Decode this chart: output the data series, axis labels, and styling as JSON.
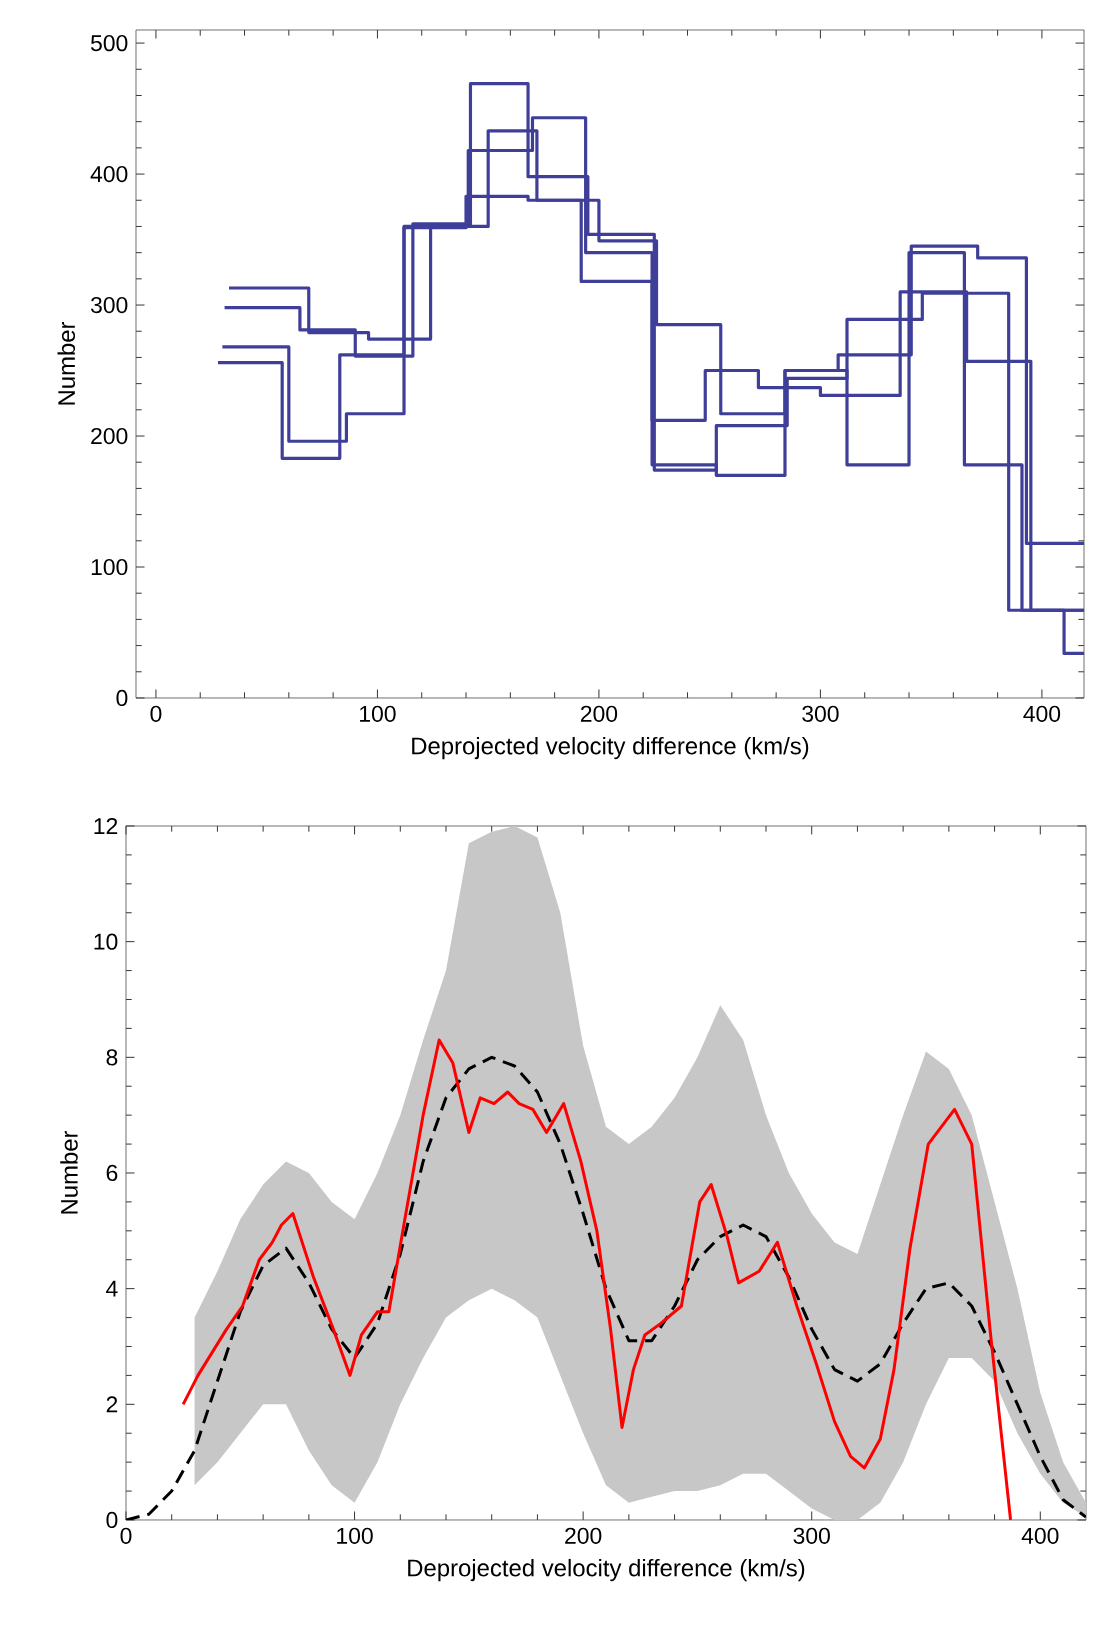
{
  "chart_data": [
    {
      "type": "step",
      "xlabel": "Deprojected velocity difference (km/s)",
      "ylabel": "Number",
      "xlim": [
        -9,
        419
      ],
      "ylim": [
        0,
        510
      ],
      "xticks": [
        0,
        100,
        200,
        300,
        400
      ],
      "yticks": [
        0,
        100,
        200,
        300,
        400,
        500
      ],
      "series": [
        {
          "color": "#3f3f9a",
          "x": [
            33,
            69,
            96,
            124,
            150,
            172,
            200,
            226,
            255,
            284,
            308,
            341,
            371,
            393,
            419
          ],
          "values": [
            313,
            279,
            274,
            360,
            433,
            380,
            349,
            285,
            217,
            250,
            262,
            345,
            336,
            118,
            118
          ]
        },
        {
          "color": "#3f3f9a",
          "x": [
            31,
            65,
            90,
            116,
            141,
            170,
            194,
            224,
            248,
            272,
            300,
            336,
            366,
            395,
            419
          ],
          "values": [
            298,
            281,
            261,
            362,
            418,
            443,
            340,
            212,
            250,
            237,
            231,
            310,
            257,
            67,
            67
          ]
        },
        {
          "color": "#3f3f9a",
          "x": [
            30,
            60,
            86,
            112,
            142,
            168,
            195,
            225,
            253,
            285,
            312,
            346,
            385,
            410,
            419
          ],
          "values": [
            268,
            196,
            217,
            360,
            469,
            398,
            354,
            174,
            208,
            244,
            289,
            309,
            67,
            34,
            34
          ]
        },
        {
          "color": "#3f3f9a",
          "x": [
            28,
            57,
            83,
            112,
            140,
            168,
            192,
            224,
            253,
            284,
            312,
            340,
            365,
            391,
            419
          ],
          "values": [
            256,
            183,
            262,
            359,
            383,
            380,
            318,
            178,
            170,
            250,
            178,
            340,
            178,
            67,
            67
          ]
        }
      ]
    },
    {
      "type": "line",
      "xlabel": "Deprojected velocity difference (km/s)",
      "ylabel": "Number",
      "xlim": [
        0,
        420
      ],
      "ylim": [
        0,
        12
      ],
      "xticks": [
        0,
        100,
        200,
        300,
        400
      ],
      "yticks": [
        0,
        2,
        4,
        6,
        8,
        10,
        12
      ],
      "series": [
        {
          "color": "#000000",
          "line_style": "dashed",
          "x": [
            0,
            10,
            20,
            30,
            40,
            50,
            60,
            70,
            80,
            90,
            100,
            110,
            120,
            130,
            140,
            150,
            160,
            170,
            180,
            190,
            200,
            210,
            220,
            230,
            240,
            250,
            260,
            270,
            280,
            290,
            300,
            310,
            320,
            330,
            340,
            350,
            360,
            370,
            380,
            390,
            400,
            410,
            420
          ],
          "values": [
            0,
            0.1,
            0.5,
            1.2,
            2.4,
            3.6,
            4.4,
            4.7,
            4.1,
            3.3,
            2.8,
            3.4,
            4.6,
            6.2,
            7.3,
            7.8,
            8.0,
            7.85,
            7.4,
            6.5,
            5.3,
            4.0,
            3.1,
            3.1,
            3.7,
            4.5,
            4.9,
            5.1,
            4.9,
            4.2,
            3.3,
            2.6,
            2.4,
            2.7,
            3.4,
            4.0,
            4.1,
            3.7,
            2.9,
            2.0,
            1.1,
            0.35,
            0.05
          ],
          "upper": [
            null,
            null,
            null,
            3.5,
            4.3,
            5.2,
            5.8,
            6.2,
            6.0,
            5.5,
            5.2,
            6.0,
            7.0,
            8.3,
            9.5,
            11.7,
            11.9,
            12,
            11.8,
            10.5,
            8.2,
            6.8,
            6.5,
            6.8,
            7.3,
            8.0,
            8.9,
            8.3,
            7.0,
            6.0,
            5.3,
            4.8,
            4.6,
            5.8,
            7.0,
            8.1,
            7.8,
            7.0,
            5.5,
            4.0,
            2.2,
            1.0,
            0.3
          ],
          "lower": [
            null,
            null,
            null,
            0.6,
            1.0,
            1.5,
            2.0,
            2.0,
            1.2,
            0.6,
            0.3,
            1.0,
            2.0,
            2.8,
            3.5,
            3.8,
            4.0,
            3.8,
            3.5,
            2.5,
            1.5,
            0.6,
            0.3,
            0.4,
            0.5,
            0.5,
            0.6,
            0.8,
            0.8,
            0.5,
            0.2,
            0,
            0,
            0.3,
            1.0,
            2.0,
            2.8,
            2.8,
            2.4,
            1.5,
            0.8,
            0.3,
            0.05
          ]
        },
        {
          "color": "#ff0000",
          "x": [
            25,
            31.5,
            44,
            51,
            58.3,
            64,
            68,
            73,
            82,
            90.7,
            98,
            103,
            110,
            115,
            122,
            130,
            137,
            143,
            150,
            155,
            161,
            167,
            172,
            178,
            184,
            191.5,
            199,
            206,
            212,
            217,
            222,
            227,
            234,
            243,
            251,
            256,
            263,
            268,
            277,
            285,
            293.5,
            302,
            310,
            317,
            323,
            330,
            336,
            343,
            351,
            362.5,
            370,
            378,
            387
          ],
          "values": [
            2.0,
            2.5,
            3.3,
            3.7,
            4.5,
            4.8,
            5.1,
            5.3,
            4.2,
            3.3,
            2.5,
            3.2,
            3.6,
            3.6,
            5.2,
            7.0,
            8.3,
            7.9,
            6.7,
            7.3,
            7.2,
            7.4,
            7.2,
            7.1,
            6.7,
            7.2,
            6.2,
            5.0,
            3.3,
            1.6,
            2.6,
            3.2,
            3.4,
            3.7,
            5.5,
            5.8,
            4.9,
            4.1,
            4.3,
            4.8,
            3.7,
            2.7,
            1.7,
            1.1,
            0.9,
            1.4,
            2.6,
            4.7,
            6.5,
            7.1,
            6.5,
            3.3,
            0
          ]
        }
      ]
    }
  ]
}
